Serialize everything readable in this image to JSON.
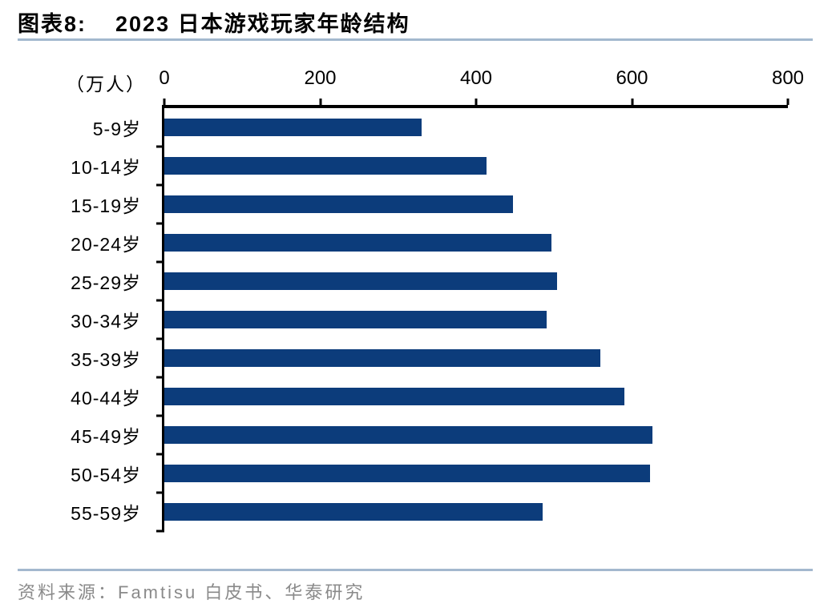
{
  "header": {
    "figure_label": "图表8:",
    "title": "2023 日本游戏玩家年龄结构"
  },
  "chart": {
    "unit_label": "（万人）"
  },
  "footer": {
    "source": "资料来源：Famtisu 白皮书、华泰研究"
  },
  "colors": {
    "bar": "#0c3c7b",
    "divider": "#a3b8ce",
    "axis": "#000000",
    "source_text": "#8a8a8a"
  },
  "chart_data": {
    "type": "bar",
    "orientation": "horizontal",
    "title": "2023 日本游戏玩家年龄结构",
    "unit": "万人",
    "categories": [
      "5-9岁",
      "10-14岁",
      "15-19岁",
      "20-24岁",
      "25-29岁",
      "30-34岁",
      "35-39岁",
      "40-44岁",
      "45-49岁",
      "50-54岁",
      "55-59岁"
    ],
    "values": [
      330,
      413,
      447,
      497,
      504,
      491,
      559,
      590,
      626,
      623,
      485
    ],
    "xlabel": "",
    "ylabel": "",
    "xlim": [
      0,
      800
    ],
    "xticks": [
      0,
      200,
      400,
      600,
      800
    ],
    "grid": false,
    "legend": "none",
    "bar_color": "#0c3c7b"
  }
}
